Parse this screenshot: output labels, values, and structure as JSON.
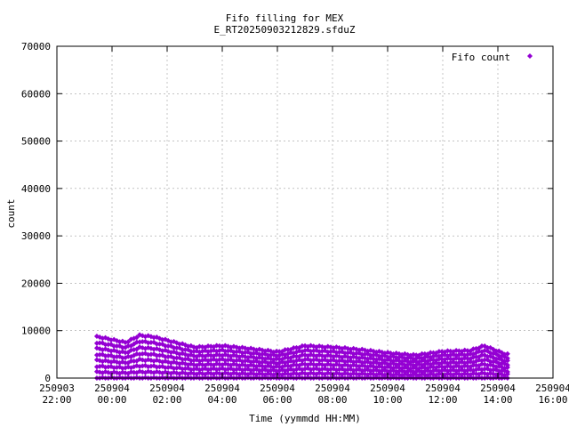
{
  "chart_data": {
    "type": "scatter",
    "title": [
      "Fifo filling for MEX",
      "E_RT20250903212829.sfduZ"
    ],
    "xlabel": "Time (yymmdd HH:MM)",
    "ylabel": "count",
    "xlim_hours": [
      -2,
      16
    ],
    "ylim": [
      0,
      70000
    ],
    "x_ticks": [
      {
        "hour": -2,
        "date": "250903",
        "time": "22:00"
      },
      {
        "hour": 0,
        "date": "250904",
        "time": "00:00"
      },
      {
        "hour": 2,
        "date": "250904",
        "time": "02:00"
      },
      {
        "hour": 4,
        "date": "250904",
        "time": "04:00"
      },
      {
        "hour": 6,
        "date": "250904",
        "time": "06:00"
      },
      {
        "hour": 8,
        "date": "250904",
        "time": "08:00"
      },
      {
        "hour": 10,
        "date": "250904",
        "time": "10:00"
      },
      {
        "hour": 12,
        "date": "250904",
        "time": "12:00"
      },
      {
        "hour": 14,
        "date": "250904",
        "time": "14:00"
      },
      {
        "hour": 16,
        "date": "250904",
        "time": "16:00"
      }
    ],
    "y_ticks": [
      "0",
      "10000",
      "20000",
      "30000",
      "40000",
      "50000",
      "60000",
      "70000"
    ],
    "grid": true,
    "legend_position": "top-right",
    "series": [
      {
        "name": "Fifo count",
        "color": "#9400d3",
        "marker": "diamond",
        "time_range_hours": [
          -0.55,
          14.35
        ],
        "upper_envelope": [
          {
            "hour": -0.5,
            "value": 8700
          },
          {
            "hour": 0.5,
            "value": 7500
          },
          {
            "hour": 1.0,
            "value": 9000
          },
          {
            "hour": 1.5,
            "value": 8700
          },
          {
            "hour": 2.5,
            "value": 7200
          },
          {
            "hour": 3.0,
            "value": 6500
          },
          {
            "hour": 4.0,
            "value": 6800
          },
          {
            "hour": 5.0,
            "value": 6200
          },
          {
            "hour": 6.0,
            "value": 5500
          },
          {
            "hour": 7.0,
            "value": 6800
          },
          {
            "hour": 8.0,
            "value": 6500
          },
          {
            "hour": 9.0,
            "value": 6000
          },
          {
            "hour": 10.0,
            "value": 5300
          },
          {
            "hour": 11.0,
            "value": 4800
          },
          {
            "hour": 12.0,
            "value": 5600
          },
          {
            "hour": 13.0,
            "value": 5800
          },
          {
            "hour": 13.5,
            "value": 6800
          },
          {
            "hour": 14.3,
            "value": 5000
          }
        ],
        "levels": 8
      }
    ]
  }
}
